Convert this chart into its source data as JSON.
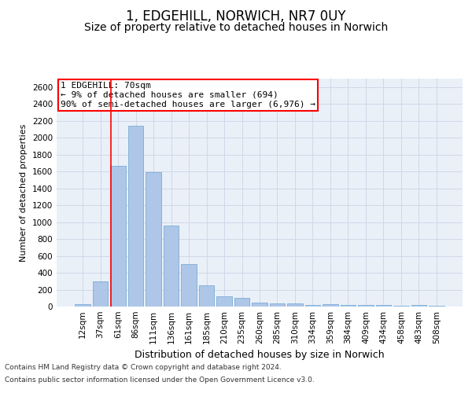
{
  "title_line1": "1, EDGEHILL, NORWICH, NR7 0UY",
  "title_line2": "Size of property relative to detached houses in Norwich",
  "xlabel": "Distribution of detached houses by size in Norwich",
  "ylabel": "Number of detached properties",
  "categories": [
    "12sqm",
    "37sqm",
    "61sqm",
    "86sqm",
    "111sqm",
    "136sqm",
    "161sqm",
    "185sqm",
    "210sqm",
    "235sqm",
    "260sqm",
    "285sqm",
    "310sqm",
    "334sqm",
    "359sqm",
    "384sqm",
    "409sqm",
    "434sqm",
    "458sqm",
    "483sqm",
    "508sqm"
  ],
  "values": [
    25,
    300,
    1670,
    2140,
    1590,
    960,
    500,
    250,
    120,
    100,
    50,
    40,
    35,
    20,
    30,
    20,
    20,
    15,
    5,
    20,
    5
  ],
  "bar_color": "#aec6e8",
  "bar_edge_color": "#7aadd6",
  "vline_color": "red",
  "annotation_text": "1 EDGEHILL: 70sqm\n← 9% of detached houses are smaller (694)\n90% of semi-detached houses are larger (6,976) →",
  "annotation_box_color": "white",
  "annotation_box_edgecolor": "red",
  "ylim": [
    0,
    2700
  ],
  "yticks": [
    0,
    200,
    400,
    600,
    800,
    1000,
    1200,
    1400,
    1600,
    1800,
    2000,
    2200,
    2400,
    2600
  ],
  "grid_color": "#d0d8e8",
  "bg_color": "#eaf0f8",
  "footer_line1": "Contains HM Land Registry data © Crown copyright and database right 2024.",
  "footer_line2": "Contains public sector information licensed under the Open Government Licence v3.0.",
  "title1_fontsize": 12,
  "title2_fontsize": 10,
  "xlabel_fontsize": 9,
  "ylabel_fontsize": 8,
  "tick_fontsize": 7.5,
  "annotation_fontsize": 8,
  "footer_fontsize": 6.5
}
